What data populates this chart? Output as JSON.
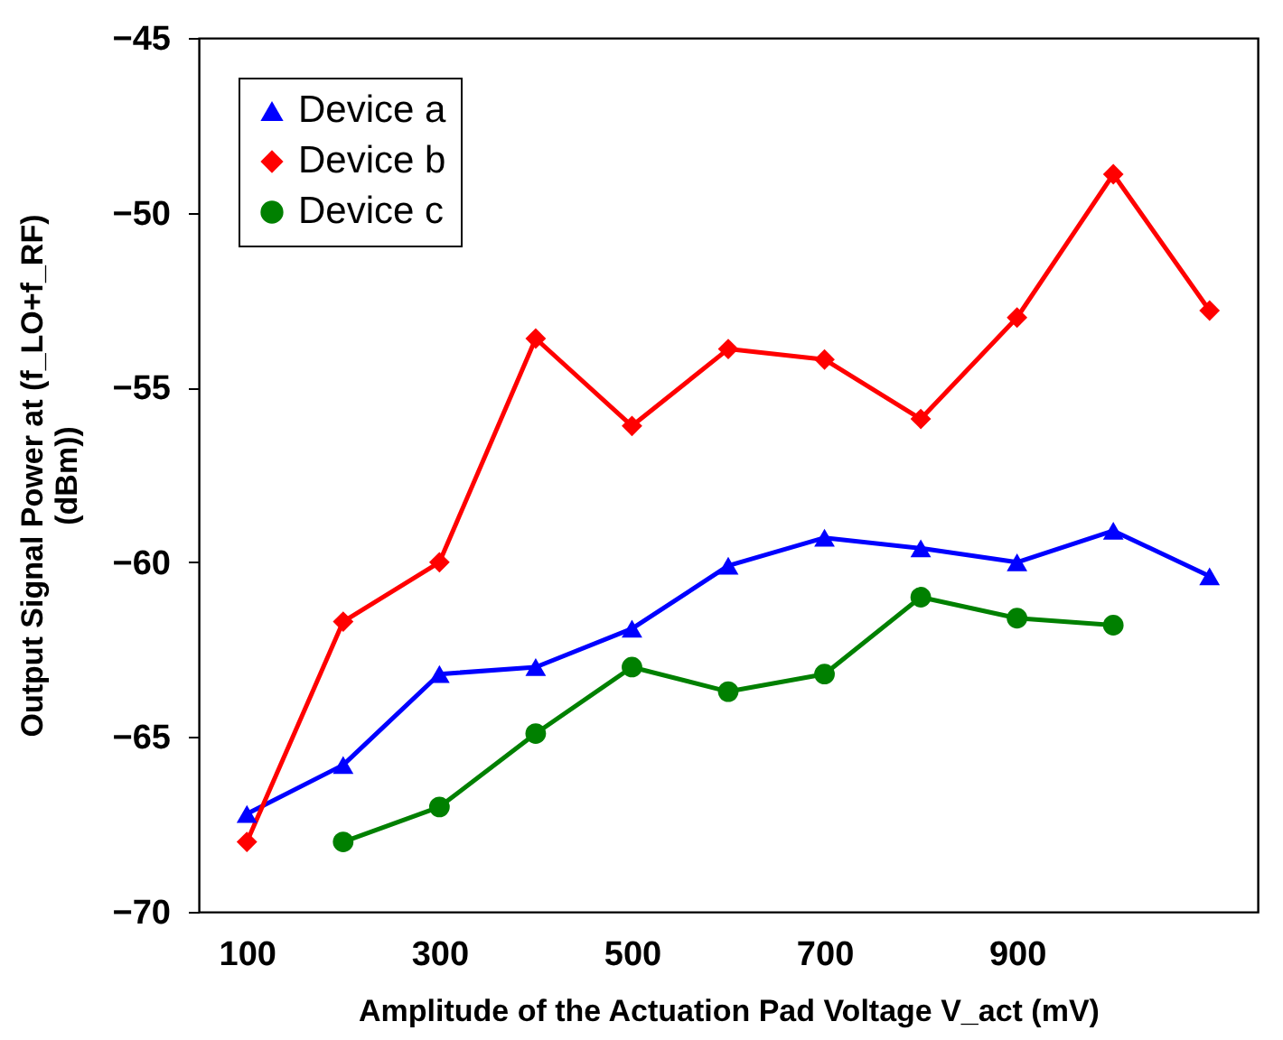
{
  "chart_data": {
    "type": "line",
    "xlabel": "Amplitude of the Actuation Pad Voltage V_act  (mV)",
    "ylabel": "Output Signal Power at (f_LO+f_RF)\n(dBm))",
    "x": [
      100,
      200,
      300,
      400,
      500,
      600,
      700,
      800,
      900,
      1000,
      1100
    ],
    "xlim": [
      50,
      1150
    ],
    "xticks": [
      100,
      300,
      500,
      700,
      900
    ],
    "ylim": [
      -70,
      -45
    ],
    "yticks": [
      -70,
      -65,
      -60,
      -55,
      -50,
      -45
    ],
    "series": [
      {
        "name": "Device a",
        "color": "#0000ff",
        "marker": "triangle",
        "values": [
          -67.2,
          -65.8,
          -63.2,
          -63.0,
          -61.9,
          -60.1,
          -59.3,
          -59.6,
          -60.0,
          -59.1,
          -60.4
        ]
      },
      {
        "name": "Device b",
        "color": "#ff0000",
        "marker": "diamond",
        "values": [
          -68.0,
          -61.7,
          -60.0,
          -53.6,
          -56.1,
          -53.9,
          -54.2,
          -55.9,
          -53.0,
          -48.9,
          -52.8
        ]
      },
      {
        "name": "Device c",
        "color": "#008000",
        "marker": "circle",
        "values": [
          null,
          -68.0,
          -67.0,
          -64.9,
          -63.0,
          -63.7,
          -63.2,
          -61.0,
          -61.6,
          -61.8,
          null
        ]
      }
    ],
    "grid": false,
    "legend": "top left",
    "line_style": "solid"
  }
}
